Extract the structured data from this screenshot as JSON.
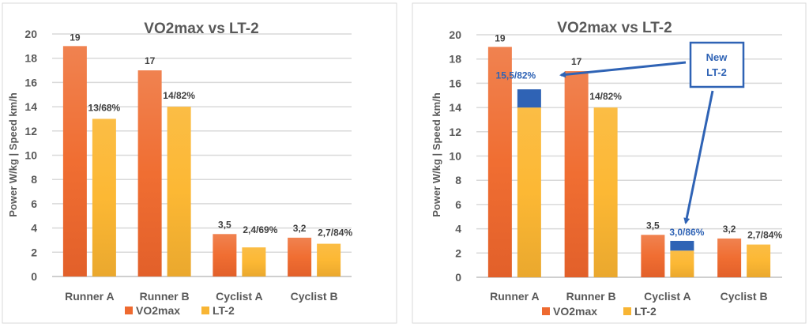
{
  "colors": {
    "vo2max": "#ee6a30",
    "lt2": "#f8b534",
    "new_lt2": "#2f63b5",
    "grid": "#d9d9d9",
    "text": "#404040"
  },
  "chart_data": [
    {
      "type": "bar",
      "title": "VO2max vs LT-2",
      "ylabel": "Power W/kg | Speed km/h",
      "ylim": [
        0,
        20
      ],
      "yticks": [
        "0",
        "2",
        "4",
        "6",
        "8",
        "10",
        "12",
        "14",
        "16",
        "18",
        "20"
      ],
      "grid": true,
      "legend": "bottom",
      "categories": [
        "Runner A",
        "Runner B",
        "Cyclist A",
        "Cyclist B"
      ],
      "series": [
        {
          "name": "VO2max",
          "values": [
            19,
            17,
            3.5,
            3.2
          ],
          "labels": [
            "19",
            "17",
            "3,5",
            "3,2"
          ]
        },
        {
          "name": "LT-2",
          "values": [
            13,
            14,
            2.4,
            2.7
          ],
          "labels": [
            "13/68%",
            "14/82%",
            "2,4/69%",
            "2,7/84%"
          ]
        }
      ]
    },
    {
      "type": "bar",
      "title": "VO2max vs LT-2",
      "ylabel": "Power W/kg | Speed km/h",
      "ylim": [
        0,
        20
      ],
      "yticks": [
        "0",
        "2",
        "4",
        "6",
        "8",
        "10",
        "12",
        "14",
        "16",
        "18",
        "20"
      ],
      "grid": true,
      "legend": "bottom",
      "categories": [
        "Runner A",
        "Runner B",
        "Cyclist A",
        "Cyclist B"
      ],
      "series": [
        {
          "name": "VO2max",
          "values": [
            19,
            17,
            3.5,
            3.2
          ],
          "labels": [
            "19",
            "17",
            "3,5",
            "3,2"
          ]
        },
        {
          "name": "LT-2",
          "values": [
            14,
            14,
            2.2,
            2.7
          ],
          "labels": [
            "",
            "14/82%",
            "",
            "2,7/84%"
          ]
        }
      ],
      "new_lt2": {
        "values": [
          15.5,
          null,
          3.0,
          null
        ],
        "labels": [
          "15,5/82%",
          "",
          "3,0/86%",
          ""
        ]
      },
      "annotation": {
        "line1": "New",
        "line2": "LT-2"
      }
    }
  ]
}
